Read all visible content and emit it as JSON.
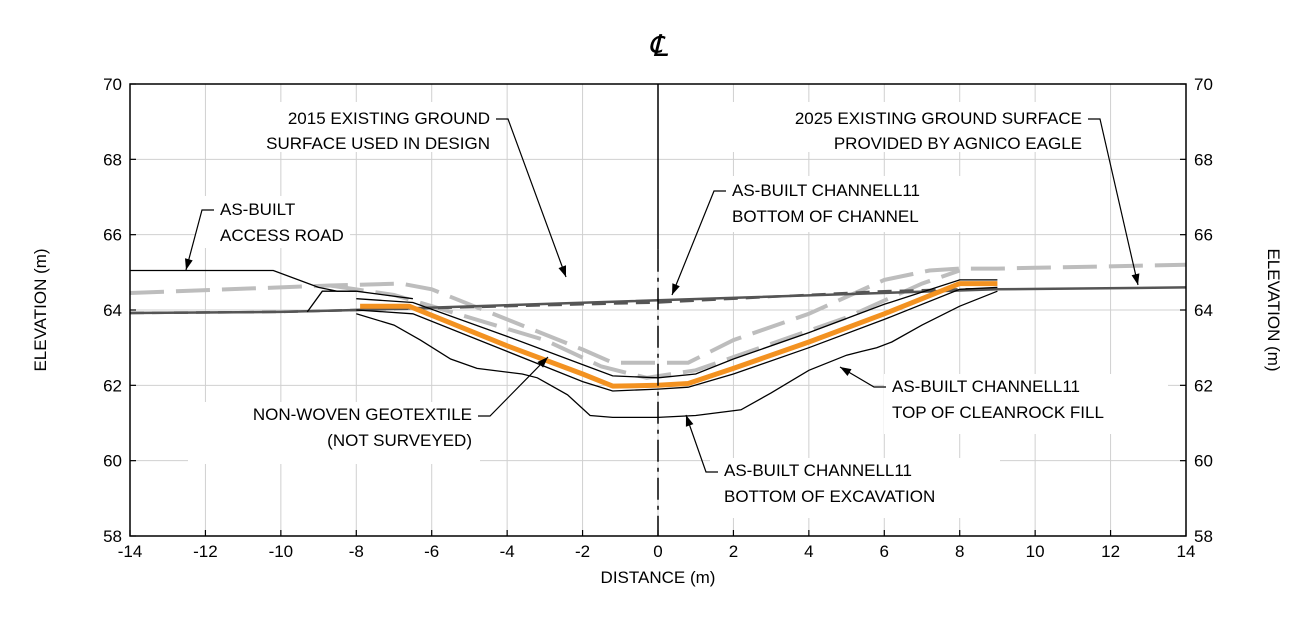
{
  "chart_data": {
    "type": "line",
    "centerline_symbol": "℄",
    "xlabel": "DISTANCE (m)",
    "ylabel_left": "ELEVATION (m)",
    "ylabel_right": "ELEVATION (m)",
    "xlim": [
      -14,
      14
    ],
    "ylim": [
      58,
      70
    ],
    "x_ticks": [
      -14,
      -12,
      -10,
      -8,
      -6,
      -4,
      -2,
      0,
      2,
      4,
      6,
      8,
      10,
      12,
      14
    ],
    "y_ticks": [
      58,
      60,
      62,
      64,
      66,
      68,
      70
    ],
    "grid": true,
    "colors": {
      "design_2015": "#bdbdbd",
      "existing_2025": "#555555",
      "excavation": "#000000",
      "cleanrock": "#000000",
      "bottom_channel": "#000000",
      "geotextile": "#f39221",
      "access_road": "#000000",
      "grid": "#d0d0d0"
    },
    "series": [
      {
        "key": "design_2015",
        "style": "dashed-thick",
        "x": [
          -14,
          -8.7,
          -6.8,
          -6,
          -4,
          -2,
          -1.2,
          0,
          0.8,
          2,
          4,
          6,
          7.2,
          8,
          9,
          10,
          14
        ],
        "y": [
          64.45,
          64.65,
          64.7,
          64.55,
          63.75,
          62.95,
          62.6,
          62.6,
          62.6,
          63.2,
          63.9,
          64.8,
          65.05,
          65.1,
          65.1,
          65.12,
          65.2
        ]
      },
      {
        "key": "design_2015_inner",
        "style": "dashed-thick",
        "x": [
          -8.7,
          -7,
          -5,
          -3,
          -1.5,
          -0.3,
          1,
          3,
          5,
          7,
          8
        ],
        "y": [
          64.65,
          64.4,
          63.8,
          63.2,
          62.5,
          62.2,
          62.4,
          63.1,
          63.8,
          64.7,
          65.05
        ]
      },
      {
        "key": "existing_2025",
        "style": "dashed",
        "x": [
          -14,
          -10,
          -8,
          -6,
          -4,
          -2,
          0,
          2,
          4,
          6,
          8,
          9
        ],
        "y": [
          63.92,
          63.95,
          64.0,
          64.05,
          64.1,
          64.15,
          64.2,
          64.3,
          64.4,
          64.5,
          64.55,
          64.55
        ]
      },
      {
        "key": "existing_2025_solid",
        "style": "solid-thick",
        "x": [
          -14,
          -10,
          -8,
          9,
          14
        ],
        "y": [
          63.92,
          63.95,
          64.0,
          64.55,
          64.6
        ]
      },
      {
        "key": "access_road",
        "style": "solid",
        "x": [
          -14,
          -12.5,
          -10.2,
          -9,
          -8.5,
          -8
        ],
        "y": [
          65.05,
          65.05,
          65.05,
          64.6,
          64.5,
          64.5
        ]
      },
      {
        "key": "access_road_2",
        "style": "solid",
        "x": [
          -9.3,
          -8.9,
          -8,
          -6.5
        ],
        "y": [
          63.95,
          64.5,
          64.5,
          64.3
        ]
      },
      {
        "key": "bottom_channel",
        "style": "solid",
        "x": [
          -8,
          -6.5,
          -4,
          -2,
          -1.2,
          0,
          1,
          2,
          4,
          6,
          8,
          9
        ],
        "y": [
          64.3,
          64.2,
          63.3,
          62.55,
          62.25,
          62.2,
          62.3,
          62.7,
          63.4,
          64.15,
          64.8,
          64.8
        ]
      },
      {
        "key": "geotextile",
        "style": "orange",
        "x": [
          -7.9,
          -6.6,
          -4,
          -2,
          -1.2,
          0,
          0.8,
          2,
          4,
          6,
          8,
          9
        ],
        "y": [
          64.1,
          64.1,
          63.05,
          62.3,
          61.98,
          62.0,
          62.05,
          62.45,
          63.15,
          63.9,
          64.7,
          64.7
        ]
      },
      {
        "key": "cleanrock",
        "style": "solid",
        "x": [
          -8,
          -6.5,
          -4,
          -2,
          -1.2,
          0,
          0.8,
          2,
          4,
          6,
          8,
          9
        ],
        "y": [
          64.0,
          63.9,
          62.9,
          62.1,
          61.85,
          61.9,
          61.95,
          62.3,
          63.0,
          63.75,
          64.55,
          64.6
        ]
      },
      {
        "key": "excavation",
        "style": "solid",
        "x": [
          -8,
          -7,
          -6.3,
          -5.5,
          -4.8,
          -3.6,
          -3.2,
          -2.4,
          -1.8,
          -1.2,
          0,
          1,
          2.2,
          3,
          4,
          5,
          5.4,
          5.8,
          6.2,
          7,
          8,
          9
        ],
        "y": [
          63.9,
          63.6,
          63.2,
          62.7,
          62.45,
          62.3,
          62.2,
          61.75,
          61.2,
          61.15,
          61.15,
          61.2,
          61.35,
          61.8,
          62.4,
          62.8,
          62.9,
          63.0,
          63.15,
          63.6,
          64.1,
          64.5
        ]
      }
    ],
    "annotations": [
      {
        "lines": [
          "2015 EXISTING GROUND",
          "SURFACE USED IN DESIGN"
        ],
        "anchor": "end"
      },
      {
        "lines": [
          "2025 EXISTING GROUND SURFACE",
          "PROVIDED BY AGNICO EAGLE"
        ],
        "anchor": "end"
      },
      {
        "lines": [
          "AS-BUILT",
          "ACCESS ROAD"
        ],
        "anchor": "start"
      },
      {
        "lines": [
          "AS-BUILT CHANNELL11",
          "BOTTOM OF CHANNEL"
        ],
        "anchor": "start"
      },
      {
        "lines": [
          "NON-WOVEN GEOTEXTILE",
          "(NOT SURVEYED)"
        ],
        "anchor": "end"
      },
      {
        "lines": [
          "AS-BUILT CHANNELL11",
          "TOP OF CLEANROCK FILL"
        ],
        "anchor": "start"
      },
      {
        "lines": [
          "AS-BUILT CHANNELL11",
          "BOTTOM OF EXCAVATION"
        ],
        "anchor": "start"
      }
    ]
  }
}
